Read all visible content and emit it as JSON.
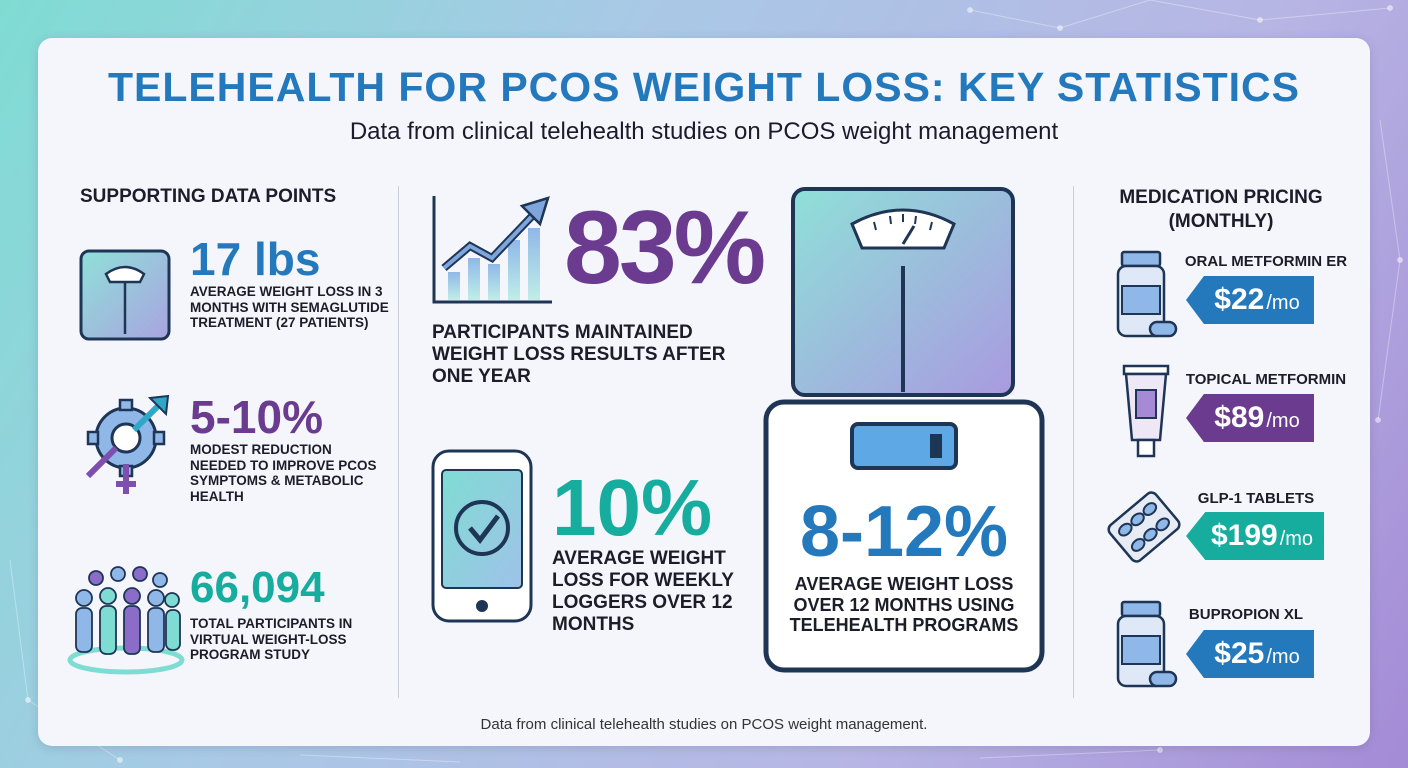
{
  "title": "TELEHEALTH FOR PCOS WEIGHT LOSS: KEY STATISTICS",
  "subtitle": "Data from clinical telehealth studies on PCOS weight management",
  "footnote": "Data from clinical telehealth studies on PCOS weight management.",
  "colors": {
    "blue": "#2479bd",
    "purple": "#6a3b8f",
    "teal": "#16ad9e",
    "navy": "#1e3556"
  },
  "supporting": {
    "heading": "SUPPORTING DATA POINTS",
    "items": [
      {
        "value": "17 lbs",
        "text": "AVERAGE WEIGHT LOSS IN 3 MONTHS WITH SEMAGLUTIDE TREATMENT (27 PATIENTS)",
        "icon": "scale-icon"
      },
      {
        "value": "5-10%",
        "text": "MODEST REDUCTION NEEDED TO IMPROVE PCOS SYMPTOMS & METABOLIC HEALTH",
        "icon": "gender-gear-icon"
      },
      {
        "value": "66,094",
        "text": "TOTAL PARTICIPANTS IN VIRTUAL WEIGHT-LOSS PROGRAM STUDY",
        "icon": "people-group-icon"
      }
    ]
  },
  "center": {
    "maintained": {
      "value": "83%",
      "text": "PARTICIPANTS MAINTAINED WEIGHT LOSS RESULTS AFTER ONE YEAR",
      "icon": "growth-chart-icon"
    },
    "loggers": {
      "value": "10%",
      "text": "AVERAGE WEIGHT LOSS FOR WEEKLY LOGGERS OVER 12 MONTHS",
      "icon": "phone-check-icon"
    },
    "telehealth": {
      "value": "8-12%",
      "text": "AVERAGE WEIGHT LOSS OVER 12 MONTHS USING TELEHEALTH PROGRAMS",
      "icon": "digital-scale-icon"
    }
  },
  "pricing": {
    "heading": "MEDICATION PRICING (MONTHLY)",
    "items": [
      {
        "name": "ORAL METFORMIN ER",
        "price": "$22",
        "unit": "/mo",
        "color": "#2479bd",
        "icon": "pill-bottle-icon"
      },
      {
        "name": "TOPICAL METFORMIN",
        "price": "$89",
        "unit": "/mo",
        "color": "#6a3b8f",
        "icon": "cream-tube-icon"
      },
      {
        "name": "GLP-1 TABLETS",
        "price": "$199",
        "unit": "/mo",
        "color": "#16ad9e",
        "icon": "blister-pack-icon"
      },
      {
        "name": "BUPROPION XL",
        "price": "$25",
        "unit": "/mo",
        "color": "#2479bd",
        "icon": "pill-bottle-icon"
      }
    ]
  }
}
